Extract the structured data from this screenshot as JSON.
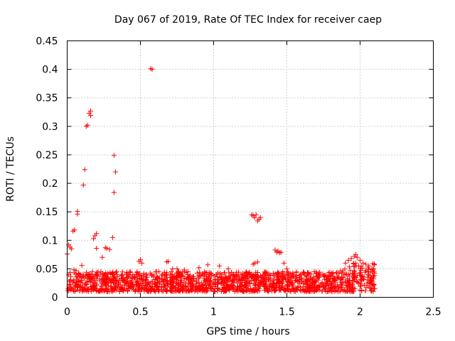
{
  "chart_data": {
    "type": "scatter",
    "title": "Day 067 of 2019, Rate Of TEC Index for receiver caep",
    "xlabel": "GPS time / hours",
    "ylabel": "ROTI / TECUs",
    "xlim": [
      0,
      2.5
    ],
    "ylim": [
      0,
      0.45
    ],
    "xticks": [
      0,
      0.5,
      1,
      1.5,
      2,
      2.5
    ],
    "xtick_labels": [
      "0",
      "0.5",
      "1",
      "1.5",
      "2",
      "2.5"
    ],
    "yticks": [
      0,
      0.05,
      0.1,
      0.15,
      0.2,
      0.25,
      0.3,
      0.35,
      0.4,
      0.45
    ],
    "ytick_labels": [
      "0",
      "0.05",
      "0.1",
      "0.15",
      "0.2",
      "0.25",
      "0.3",
      "0.35",
      "0.4",
      "0.45"
    ],
    "grid": true,
    "marker": "+",
    "marker_color": "#ff0000",
    "series": [
      {
        "name": "ROTI",
        "points": [
          [
            0.0,
            0.076
          ],
          [
            0.01,
            0.092
          ],
          [
            0.02,
            0.088
          ],
          [
            0.03,
            0.085
          ],
          [
            0.04,
            0.116
          ],
          [
            0.05,
            0.118
          ],
          [
            0.07,
            0.146
          ],
          [
            0.07,
            0.151
          ],
          [
            0.1,
            0.056
          ],
          [
            0.11,
            0.197
          ],
          [
            0.12,
            0.224
          ],
          [
            0.13,
            0.3
          ],
          [
            0.14,
            0.302
          ],
          [
            0.15,
            0.323
          ],
          [
            0.16,
            0.327
          ],
          [
            0.16,
            0.319
          ],
          [
            0.18,
            0.103
          ],
          [
            0.19,
            0.108
          ],
          [
            0.2,
            0.112
          ],
          [
            0.2,
            0.086
          ],
          [
            0.24,
            0.07
          ],
          [
            0.26,
            0.087
          ],
          [
            0.27,
            0.086
          ],
          [
            0.29,
            0.084
          ],
          [
            0.31,
            0.105
          ],
          [
            0.32,
            0.249
          ],
          [
            0.33,
            0.22
          ],
          [
            0.32,
            0.184
          ],
          [
            0.49,
            0.063
          ],
          [
            0.5,
            0.066
          ],
          [
            0.51,
            0.06
          ],
          [
            0.57,
            0.401
          ],
          [
            0.58,
            0.4
          ],
          [
            0.68,
            0.062
          ],
          [
            0.69,
            0.063
          ],
          [
            0.72,
            0.05
          ],
          [
            0.75,
            0.05
          ],
          [
            0.8,
            0.048
          ],
          [
            0.9,
            0.052
          ],
          [
            0.96,
            0.057
          ],
          [
            1.04,
            0.055
          ],
          [
            1.1,
            0.05
          ],
          [
            1.26,
            0.145
          ],
          [
            1.27,
            0.143
          ],
          [
            1.28,
            0.14
          ],
          [
            1.29,
            0.145
          ],
          [
            1.3,
            0.134
          ],
          [
            1.31,
            0.137
          ],
          [
            1.32,
            0.14
          ],
          [
            1.27,
            0.058
          ],
          [
            1.28,
            0.06
          ],
          [
            1.3,
            0.062
          ],
          [
            1.42,
            0.083
          ],
          [
            1.43,
            0.079
          ],
          [
            1.44,
            0.081
          ],
          [
            1.45,
            0.078
          ],
          [
            1.46,
            0.079
          ],
          [
            1.48,
            0.06
          ],
          [
            1.5,
            0.05
          ],
          [
            1.9,
            0.06
          ],
          [
            1.92,
            0.065
          ],
          [
            1.94,
            0.068
          ],
          [
            1.96,
            0.072
          ],
          [
            1.97,
            0.075
          ],
          [
            1.98,
            0.07
          ],
          [
            2.0,
            0.065
          ],
          [
            2.02,
            0.06
          ],
          [
            2.04,
            0.058
          ],
          [
            2.06,
            0.055
          ],
          [
            2.08,
            0.05
          ]
        ]
      }
    ],
    "band": {
      "description": "dense cluster of low ROTI values",
      "x_range": [
        0.0,
        2.1
      ],
      "y_range": [
        0.01,
        0.045
      ],
      "approx_points": 1600
    }
  }
}
